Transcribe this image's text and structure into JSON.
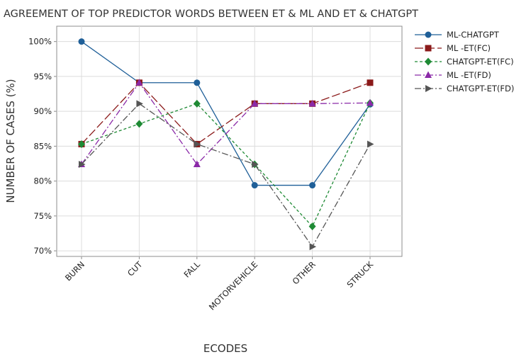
{
  "chart_data": {
    "type": "line",
    "title": "AGREEMENT OF TOP PREDICTOR WORDS BETWEEN ET & ML AND ET & CHATGPT",
    "xlabel": "ECODES",
    "ylabel": "NUMBER OF CASES (%)",
    "categories": [
      "BURN",
      "CUT",
      "FALL",
      "MOTORVEHICLE",
      "OTHER",
      "STRUCK"
    ],
    "yticks": [
      "100%",
      "95%",
      "90%",
      "85%",
      "80%",
      "75%",
      "70%"
    ],
    "ytick_values": [
      100,
      95,
      90,
      85,
      80,
      75,
      70
    ],
    "ylim": [
      69.2,
      102.2
    ],
    "grid": true,
    "legend_position": "right",
    "series": [
      {
        "name": "ML-CHATGPT",
        "values": [
          100,
          94.1,
          94.1,
          79.4,
          79.4,
          91.0
        ],
        "color": "#1f5f98",
        "marker": "circle",
        "dash": "solid"
      },
      {
        "name": "ML -ET(FC)",
        "values": [
          85.3,
          94.1,
          85.3,
          91.1,
          91.1,
          94.1
        ],
        "color": "#8b1a1a",
        "marker": "square",
        "dash": "long-dash"
      },
      {
        "name": "CHATGPT-ET(FC)",
        "values": [
          85.3,
          88.2,
          91.1,
          82.4,
          73.5,
          91.2
        ],
        "color": "#1e8a34",
        "marker": "diamond",
        "dash": "short-dash"
      },
      {
        "name": "ML -ET(FD)",
        "values": [
          82.4,
          94.1,
          82.4,
          91.1,
          91.1,
          91.2
        ],
        "color": "#8b2aa8",
        "marker": "triangle-up",
        "dash": "dash-dot"
      },
      {
        "name": "CHATGPT-ET(FD)",
        "values": [
          82.4,
          91.1,
          85.3,
          82.4,
          70.6,
          85.3
        ],
        "color": "#555555",
        "marker": "triangle-right",
        "dash": "dash-dot"
      }
    ]
  }
}
